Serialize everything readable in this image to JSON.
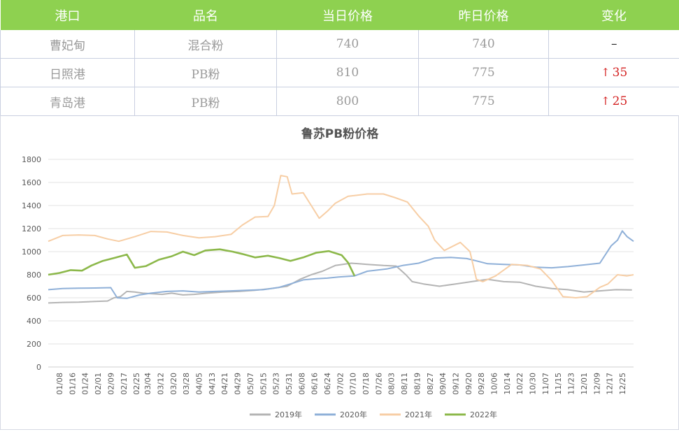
{
  "table": {
    "headers": [
      "港口",
      "品名",
      "当日价格",
      "昨日价格",
      "变化"
    ],
    "rows": [
      {
        "port": "曹妃甸",
        "product": "混合粉",
        "today": "740",
        "yesterday": "740",
        "change": "–",
        "direction": "flat"
      },
      {
        "port": "日照港",
        "product": "PB粉",
        "today": "810",
        "yesterday": "775",
        "change": "35",
        "direction": "up"
      },
      {
        "port": "青岛港",
        "product": "PB粉",
        "today": "800",
        "yesterday": "775",
        "change": "25",
        "direction": "up"
      }
    ],
    "up_arrow_icon": "arrow-up-icon",
    "colors": {
      "header_bg": "#8ed150",
      "up": "#d42323"
    }
  },
  "chart_data": {
    "type": "line",
    "title": "鲁苏PB粉价格",
    "xlabel": "",
    "ylabel": "",
    "ylim": [
      0,
      1800
    ],
    "yticks": [
      0,
      200,
      400,
      600,
      800,
      1000,
      1200,
      1400,
      1600,
      1800
    ],
    "x_ticks": [
      "01/08",
      "01/16",
      "01/24",
      "02/01",
      "02/09",
      "02/17",
      "02/25",
      "03/04",
      "03/12",
      "03/20",
      "03/28",
      "04/05",
      "04/13",
      "04/21",
      "04/29",
      "05/07",
      "05/15",
      "05/23",
      "05/31",
      "06/08",
      "06/16",
      "06/24",
      "07/02",
      "07/10",
      "07/18",
      "07/26",
      "08/03",
      "08/11",
      "08/19",
      "08/27",
      "09/04",
      "09/12",
      "09/20",
      "09/28",
      "10/06",
      "10/14",
      "10/22",
      "10/30",
      "11/07",
      "11/15",
      "11/23",
      "12/01",
      "12/09",
      "12/17",
      "12/25"
    ],
    "x_unit": "day of year (1 = 01/01)",
    "grid": true,
    "legend_position": "bottom",
    "series": [
      {
        "name": "2019年",
        "color": "#b4b4b4",
        "points": [
          [
            1,
            555
          ],
          [
            10,
            560
          ],
          [
            20,
            562
          ],
          [
            30,
            568
          ],
          [
            38,
            572
          ],
          [
            42,
            600
          ],
          [
            46,
            610
          ],
          [
            50,
            655
          ],
          [
            55,
            650
          ],
          [
            60,
            640
          ],
          [
            66,
            635
          ],
          [
            72,
            630
          ],
          [
            78,
            640
          ],
          [
            85,
            625
          ],
          [
            92,
            630
          ],
          [
            100,
            640
          ],
          [
            110,
            650
          ],
          [
            120,
            655
          ],
          [
            130,
            665
          ],
          [
            140,
            680
          ],
          [
            150,
            700
          ],
          [
            158,
            760
          ],
          [
            165,
            800
          ],
          [
            172,
            830
          ],
          [
            180,
            880
          ],
          [
            190,
            900
          ],
          [
            200,
            890
          ],
          [
            210,
            880
          ],
          [
            218,
            875
          ],
          [
            224,
            800
          ],
          [
            228,
            740
          ],
          [
            235,
            720
          ],
          [
            245,
            700
          ],
          [
            255,
            720
          ],
          [
            265,
            740
          ],
          [
            275,
            760
          ],
          [
            285,
            740
          ],
          [
            295,
            735
          ],
          [
            305,
            700
          ],
          [
            315,
            680
          ],
          [
            325,
            670
          ],
          [
            335,
            650
          ],
          [
            345,
            660
          ],
          [
            355,
            670
          ],
          [
            365,
            668
          ]
        ]
      },
      {
        "name": "2020年",
        "color": "#8fb0d8",
        "points": [
          [
            1,
            670
          ],
          [
            10,
            680
          ],
          [
            20,
            683
          ],
          [
            30,
            685
          ],
          [
            40,
            688
          ],
          [
            44,
            600
          ],
          [
            50,
            595
          ],
          [
            58,
            625
          ],
          [
            65,
            640
          ],
          [
            75,
            655
          ],
          [
            85,
            660
          ],
          [
            95,
            650
          ],
          [
            105,
            655
          ],
          [
            115,
            660
          ],
          [
            125,
            665
          ],
          [
            135,
            670
          ],
          [
            145,
            690
          ],
          [
            152,
            720
          ],
          [
            160,
            755
          ],
          [
            168,
            765
          ],
          [
            175,
            770
          ],
          [
            182,
            780
          ],
          [
            192,
            790
          ],
          [
            200,
            830
          ],
          [
            212,
            850
          ],
          [
            222,
            880
          ],
          [
            232,
            900
          ],
          [
            242,
            945
          ],
          [
            252,
            950
          ],
          [
            262,
            940
          ],
          [
            268,
            920
          ],
          [
            275,
            895
          ],
          [
            285,
            890
          ],
          [
            295,
            885
          ],
          [
            305,
            865
          ],
          [
            315,
            860
          ],
          [
            325,
            870
          ],
          [
            335,
            885
          ],
          [
            345,
            900
          ],
          [
            352,
            1050
          ],
          [
            356,
            1100
          ],
          [
            359,
            1180
          ],
          [
            362,
            1130
          ],
          [
            366,
            1090
          ]
        ]
      },
      {
        "name": "2021年",
        "color": "#f7cea5",
        "points": [
          [
            1,
            1090
          ],
          [
            10,
            1140
          ],
          [
            20,
            1145
          ],
          [
            30,
            1140
          ],
          [
            38,
            1110
          ],
          [
            45,
            1090
          ],
          [
            55,
            1130
          ],
          [
            65,
            1175
          ],
          [
            75,
            1170
          ],
          [
            85,
            1140
          ],
          [
            95,
            1120
          ],
          [
            105,
            1130
          ],
          [
            115,
            1150
          ],
          [
            122,
            1230
          ],
          [
            130,
            1300
          ],
          [
            138,
            1305
          ],
          [
            142,
            1400
          ],
          [
            146,
            1660
          ],
          [
            150,
            1650
          ],
          [
            153,
            1500
          ],
          [
            160,
            1510
          ],
          [
            165,
            1400
          ],
          [
            170,
            1290
          ],
          [
            175,
            1350
          ],
          [
            180,
            1420
          ],
          [
            188,
            1480
          ],
          [
            200,
            1500
          ],
          [
            210,
            1500
          ],
          [
            217,
            1470
          ],
          [
            225,
            1430
          ],
          [
            232,
            1310
          ],
          [
            238,
            1220
          ],
          [
            242,
            1100
          ],
          [
            248,
            1010
          ],
          [
            258,
            1080
          ],
          [
            264,
            1000
          ],
          [
            268,
            760
          ],
          [
            272,
            740
          ],
          [
            280,
            790
          ],
          [
            290,
            890
          ],
          [
            300,
            880
          ],
          [
            308,
            850
          ],
          [
            315,
            750
          ],
          [
            322,
            610
          ],
          [
            330,
            600
          ],
          [
            337,
            610
          ],
          [
            345,
            690
          ],
          [
            350,
            720
          ],
          [
            356,
            800
          ],
          [
            362,
            790
          ],
          [
            366,
            800
          ]
        ]
      },
      {
        "name": "2022年",
        "color": "#8cb84a",
        "points": [
          [
            1,
            800
          ],
          [
            8,
            815
          ],
          [
            15,
            840
          ],
          [
            22,
            835
          ],
          [
            28,
            880
          ],
          [
            35,
            920
          ],
          [
            42,
            945
          ],
          [
            50,
            975
          ],
          [
            55,
            860
          ],
          [
            62,
            875
          ],
          [
            70,
            930
          ],
          [
            78,
            960
          ],
          [
            85,
            1000
          ],
          [
            92,
            970
          ],
          [
            99,
            1010
          ],
          [
            108,
            1020
          ],
          [
            116,
            1000
          ],
          [
            122,
            980
          ],
          [
            130,
            950
          ],
          [
            138,
            965
          ],
          [
            145,
            945
          ],
          [
            152,
            920
          ],
          [
            160,
            950
          ],
          [
            168,
            990
          ],
          [
            176,
            1005
          ],
          [
            184,
            970
          ],
          [
            188,
            905
          ],
          [
            192,
            790
          ]
        ]
      }
    ]
  }
}
